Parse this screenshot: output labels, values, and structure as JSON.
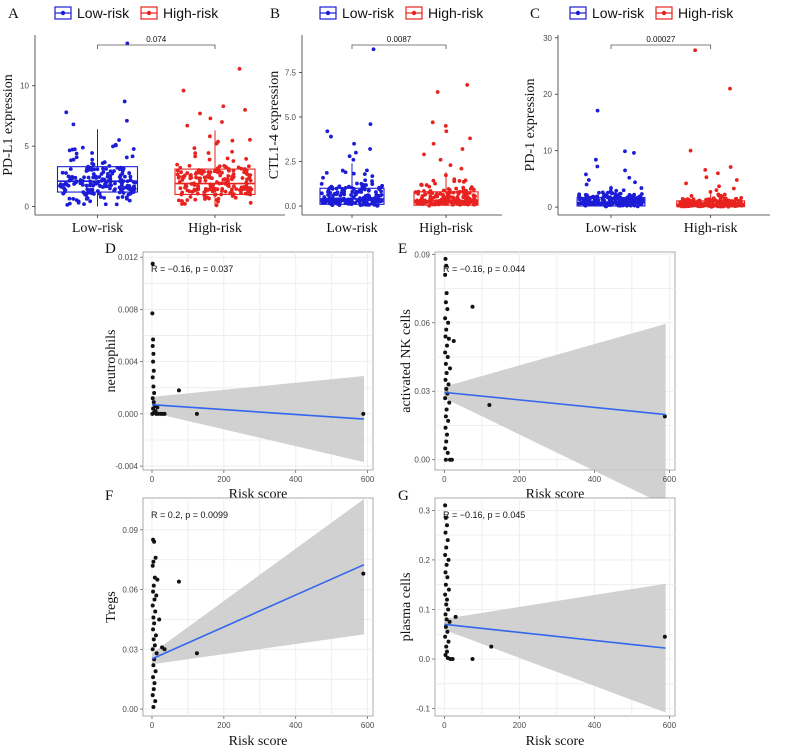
{
  "colors": {
    "low": "#1c1cd6",
    "high": "#e8231f",
    "line": "#3366ee",
    "band": "#c9c9c9",
    "grid": "#ebebeb",
    "point": "#111111"
  },
  "chart_data": [
    {
      "id": "A",
      "type": "box",
      "letter": "A",
      "legend": [
        "Low-risk",
        "High-risk"
      ],
      "ylabel": "PD-L1 expression",
      "categories": [
        "Low-risk",
        "High-risk"
      ],
      "ylim": [
        -0.7,
        14.2
      ],
      "yticks": [
        0,
        5,
        10
      ],
      "boxes": [
        {
          "q1": 1.2,
          "median": 2.1,
          "q3": 3.3,
          "lower": 0.0,
          "upper": 6.4
        },
        {
          "q1": 1.0,
          "median": 1.9,
          "q3": 3.1,
          "lower": 0.0,
          "upper": 6.3
        }
      ],
      "outliers": [
        [
          13.5,
          8.7,
          7.8,
          7.1,
          6.8
        ],
        [
          11.4,
          9.6,
          8.3,
          8.0,
          7.7,
          7.3,
          7.0,
          6.7
        ]
      ],
      "pvalue": "0.074"
    },
    {
      "id": "B",
      "type": "box",
      "letter": "B",
      "legend": [
        "Low-risk",
        "High-risk"
      ],
      "ylabel": "CTL1-4 expression",
      "categories": [
        "Low-risk",
        "High-risk"
      ],
      "ylim": [
        -0.5,
        9.6
      ],
      "yticks": [
        0.0,
        2.5,
        5.0,
        7.5
      ],
      "boxes": [
        {
          "q1": 0.1,
          "median": 0.4,
          "q3": 1.0,
          "lower": 0.0,
          "upper": 2.4
        },
        {
          "q1": 0.05,
          "median": 0.3,
          "q3": 0.8,
          "lower": 0.0,
          "upper": 1.9
        }
      ],
      "outliers": [
        [
          8.8,
          4.6,
          4.2,
          3.9,
          3.5,
          3.2,
          3.0,
          2.8,
          2.6
        ],
        [
          6.8,
          6.4,
          4.7,
          4.5,
          4.2,
          3.8,
          3.5,
          3.2,
          2.9,
          2.6,
          2.3,
          2.1
        ]
      ],
      "pvalue": "0.0087"
    },
    {
      "id": "C",
      "type": "box",
      "letter": "C",
      "legend": [
        "Low-risk",
        "High-risk"
      ],
      "ylabel": "PD-1 expression",
      "categories": [
        "Low-risk",
        "High-risk"
      ],
      "ylim": [
        -1.4,
        30.5
      ],
      "yticks": [
        0,
        10,
        20,
        30
      ],
      "boxes": [
        {
          "q1": 0.2,
          "median": 0.8,
          "q3": 1.7,
          "lower": 0.0,
          "upper": 3.8
        },
        {
          "q1": 0.1,
          "median": 0.5,
          "q3": 1.1,
          "lower": 0.0,
          "upper": 2.5
        }
      ],
      "outliers": [
        [
          17.1,
          9.9,
          9.6,
          8.4,
          7.2,
          6.5,
          5.8,
          5.2,
          4.8,
          4.4,
          4.0
        ],
        [
          27.8,
          21.0,
          10.0,
          7.1,
          6.6,
          6.0,
          5.3,
          4.8,
          4.2,
          3.7,
          3.3,
          3.0,
          2.7
        ]
      ],
      "pvalue": "0.00027"
    },
    {
      "id": "D",
      "type": "scatter",
      "letter": "D",
      "xlabel": "Risk score",
      "ylabel": "neutrophils",
      "xlim": [
        -25,
        615
      ],
      "ylim": [
        -0.0043,
        0.0124
      ],
      "xticks": [
        0,
        200,
        400,
        600
      ],
      "yticks": [
        -0.004,
        0.0,
        0.004,
        0.008,
        0.012
      ],
      "ytick_labels": [
        "-0.004",
        "0.000",
        "0.004",
        "0.008",
        "0.012"
      ],
      "stat": "R = −0.16, p = 0.037",
      "fit": [
        [
          0,
          0.0007
        ],
        [
          590,
          -0.0004
        ]
      ],
      "band_upper": [
        [
          0,
          0.0013
        ],
        [
          590,
          0.0029
        ]
      ],
      "band_lower": [
        [
          0,
          0.0001
        ],
        [
          590,
          -0.0037
        ]
      ],
      "points": [
        [
          2,
          0.0115
        ],
        [
          1,
          0.0077
        ],
        [
          3,
          0.0057
        ],
        [
          2,
          0.0052
        ],
        [
          4,
          0.0046
        ],
        [
          3,
          0.004
        ],
        [
          5,
          0.0033
        ],
        [
          2,
          0.0028
        ],
        [
          4,
          0.0021
        ],
        [
          6,
          0.0016
        ],
        [
          2,
          0.0012
        ],
        [
          5,
          0.0009
        ],
        [
          8,
          0.0006
        ],
        [
          3,
          0.0004
        ],
        [
          10,
          0.0002
        ],
        [
          6,
          0.0001
        ],
        [
          12,
          0.0
        ],
        [
          18,
          0.0
        ],
        [
          25,
          0.0
        ],
        [
          30,
          0.0
        ],
        [
          35,
          0.0
        ],
        [
          1,
          0.0
        ],
        [
          15,
          0.0005
        ],
        [
          75,
          0.0018
        ],
        [
          125,
          0.0
        ],
        [
          588,
          0.0
        ]
      ]
    },
    {
      "id": "E",
      "type": "scatter",
      "letter": "E",
      "xlabel": "Risk score",
      "ylabel": "activated NK cells",
      "xlim": [
        -25,
        615
      ],
      "ylim": [
        -0.0045,
        0.091
      ],
      "xticks": [
        0,
        200,
        400,
        600
      ],
      "yticks": [
        0.0,
        0.03,
        0.06,
        0.09
      ],
      "ytick_labels": [
        "0.00",
        "0.03",
        "0.06",
        "0.09"
      ],
      "stat": "R = −0.16, p = 0.044",
      "fit": [
        [
          0,
          0.0295
        ],
        [
          590,
          0.0198
        ]
      ],
      "band_upper": [
        [
          0,
          0.032
        ],
        [
          590,
          0.0595
        ]
      ],
      "band_lower": [
        [
          0,
          0.027
        ],
        [
          590,
          -0.02
        ]
      ],
      "points": [
        [
          3,
          0.088
        ],
        [
          5,
          0.085
        ],
        [
          2,
          0.081
        ],
        [
          6,
          0.073
        ],
        [
          4,
          0.069
        ],
        [
          8,
          0.066
        ],
        [
          2,
          0.062
        ],
        [
          10,
          0.06
        ],
        [
          5,
          0.057
        ],
        [
          3,
          0.054
        ],
        [
          12,
          0.053
        ],
        [
          7,
          0.05
        ],
        [
          2,
          0.047
        ],
        [
          9,
          0.045
        ],
        [
          4,
          0.042
        ],
        [
          15,
          0.04
        ],
        [
          6,
          0.038
        ],
        [
          3,
          0.035
        ],
        [
          11,
          0.033
        ],
        [
          5,
          0.031
        ],
        [
          8,
          0.029
        ],
        [
          2,
          0.027
        ],
        [
          13,
          0.025
        ],
        [
          6,
          0.022
        ],
        [
          4,
          0.019
        ],
        [
          10,
          0.017
        ],
        [
          3,
          0.014
        ],
        [
          7,
          0.011
        ],
        [
          5,
          0.008
        ],
        [
          2,
          0.005
        ],
        [
          9,
          0.003
        ],
        [
          4,
          0.0
        ],
        [
          15,
          0.0
        ],
        [
          25,
          0.052
        ],
        [
          20,
          0.0
        ],
        [
          75,
          0.067
        ],
        [
          120,
          0.024
        ],
        [
          588,
          0.019
        ]
      ]
    },
    {
      "id": "F",
      "type": "scatter",
      "letter": "F",
      "xlabel": "Risk score",
      "ylabel": "Tregs",
      "xlim": [
        -25,
        615
      ],
      "ylim": [
        -0.0035,
        0.106
      ],
      "xticks": [
        0,
        200,
        400,
        600
      ],
      "yticks": [
        0.0,
        0.03,
        0.06,
        0.09
      ],
      "ytick_labels": [
        "0.00",
        "0.03",
        "0.06",
        "0.09"
      ],
      "stat": "R = 0.2, p = 0.0099",
      "fit": [
        [
          0,
          0.0252
        ],
        [
          590,
          0.0725
        ]
      ],
      "band_upper": [
        [
          0,
          0.028
        ],
        [
          590,
          0.1055
        ]
      ],
      "band_lower": [
        [
          0,
          0.0225
        ],
        [
          590,
          0.0375
        ]
      ],
      "points": [
        [
          3,
          0.085
        ],
        [
          6,
          0.084
        ],
        [
          10,
          0.076
        ],
        [
          4,
          0.074
        ],
        [
          2,
          0.072
        ],
        [
          8,
          0.066
        ],
        [
          15,
          0.065
        ],
        [
          5,
          0.062
        ],
        [
          3,
          0.059
        ],
        [
          12,
          0.057
        ],
        [
          7,
          0.055
        ],
        [
          2,
          0.052
        ],
        [
          9,
          0.049
        ],
        [
          4,
          0.046
        ],
        [
          20,
          0.045
        ],
        [
          6,
          0.043
        ],
        [
          3,
          0.04
        ],
        [
          11,
          0.037
        ],
        [
          5,
          0.035
        ],
        [
          8,
          0.032
        ],
        [
          2,
          0.03
        ],
        [
          13,
          0.028
        ],
        [
          6,
          0.025
        ],
        [
          4,
          0.022
        ],
        [
          10,
          0.019
        ],
        [
          3,
          0.016
        ],
        [
          7,
          0.013
        ],
        [
          5,
          0.01
        ],
        [
          2,
          0.007
        ],
        [
          9,
          0.004
        ],
        [
          4,
          0.001
        ],
        [
          28,
          0.031
        ],
        [
          35,
          0.03
        ],
        [
          75,
          0.064
        ],
        [
          125,
          0.028
        ],
        [
          588,
          0.068
        ]
      ]
    },
    {
      "id": "G",
      "type": "scatter",
      "letter": "G",
      "xlabel": "Risk score",
      "ylabel": "plasma cells",
      "xlim": [
        -25,
        615
      ],
      "ylim": [
        -0.115,
        0.325
      ],
      "xticks": [
        0,
        200,
        400,
        600
      ],
      "yticks": [
        -0.1,
        0.0,
        0.1,
        0.2,
        0.3
      ],
      "ytick_labels": [
        "-0.1",
        "0.0",
        "0.1",
        "0.2",
        "0.3"
      ],
      "stat": "R = −0.16, p = 0.045",
      "fit": [
        [
          0,
          0.07
        ],
        [
          590,
          0.022
        ]
      ],
      "band_upper": [
        [
          0,
          0.081
        ],
        [
          590,
          0.152
        ]
      ],
      "band_lower": [
        [
          0,
          0.059
        ],
        [
          590,
          -0.108
        ]
      ],
      "points": [
        [
          2,
          0.31
        ],
        [
          4,
          0.285
        ],
        [
          7,
          0.27
        ],
        [
          3,
          0.255
        ],
        [
          9,
          0.24
        ],
        [
          5,
          0.225
        ],
        [
          2,
          0.21
        ],
        [
          11,
          0.2
        ],
        [
          6,
          0.19
        ],
        [
          3,
          0.175
        ],
        [
          8,
          0.165
        ],
        [
          4,
          0.15
        ],
        [
          12,
          0.14
        ],
        [
          2,
          0.13
        ],
        [
          7,
          0.12
        ],
        [
          5,
          0.11
        ],
        [
          10,
          0.1
        ],
        [
          3,
          0.09
        ],
        [
          6,
          0.08
        ],
        [
          14,
          0.075
        ],
        [
          4,
          0.065
        ],
        [
          8,
          0.055
        ],
        [
          2,
          0.045
        ],
        [
          11,
          0.035
        ],
        [
          5,
          0.025
        ],
        [
          7,
          0.015
        ],
        [
          3,
          0.008
        ],
        [
          9,
          0.002
        ],
        [
          16,
          0.0
        ],
        [
          22,
          0.0
        ],
        [
          30,
          0.085
        ],
        [
          75,
          0.0
        ],
        [
          125,
          0.025
        ],
        [
          588,
          0.045
        ]
      ]
    }
  ]
}
